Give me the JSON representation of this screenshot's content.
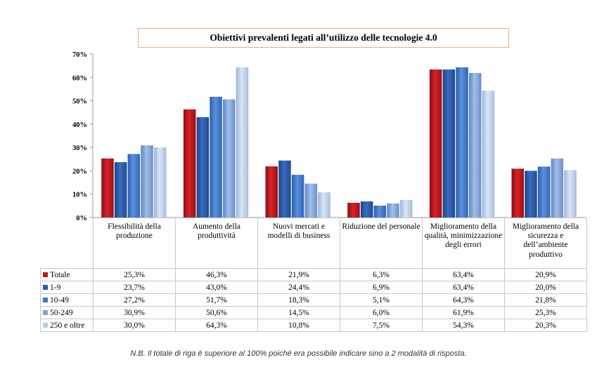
{
  "chart_data": {
    "type": "bar",
    "title": "Obiettivi prevalenti legati all’utilizzo delle tecnologie 4.0",
    "categories": [
      "Flessibilità della produzione",
      "Aumento della produttività",
      "Nuovi mercati e modelli di business",
      "Riduzione del personale",
      "Miglioramento della qualità, minimizzazione degli errori",
      "Miglioramento della sicurezza e dell’ambiente produttivo"
    ],
    "series": [
      {
        "name": "Totale",
        "color": "#c0141c",
        "values": [
          25.3,
          46.3,
          21.9,
          6.3,
          63.4,
          20.9
        ],
        "labels": [
          "25,3%",
          "46,3%",
          "21,9%",
          "6,3%",
          "63,4%",
          "20,9%"
        ]
      },
      {
        "name": "1-9",
        "color": "#2a5ba8",
        "values": [
          23.7,
          43.0,
          24.4,
          6.9,
          63.4,
          20.0
        ],
        "labels": [
          "23,7%",
          "43,0%",
          "24,4%",
          "6,9%",
          "63,4%",
          "20,0%"
        ]
      },
      {
        "name": "10-49",
        "color": "#3d78c6",
        "values": [
          27.2,
          51.7,
          18.3,
          5.1,
          64.3,
          21.8
        ],
        "labels": [
          "27,2%",
          "51,7%",
          "18,3%",
          "5,1%",
          "64,3%",
          "21,8%"
        ]
      },
      {
        "name": "50-249",
        "color": "#7fa3d8",
        "values": [
          30.9,
          50.6,
          14.5,
          6.0,
          61.9,
          25.3
        ],
        "labels": [
          "30,9%",
          "50,6%",
          "14,5%",
          "6,0%",
          "61,9%",
          "25,3%"
        ]
      },
      {
        "name": "250 e oltre",
        "color": "#b9cdea",
        "values": [
          30.0,
          64.3,
          10.8,
          7.5,
          54.3,
          20.3
        ],
        "labels": [
          "30,0%",
          "64,3%",
          "10,8%",
          "7,5%",
          "54,3%",
          "20,3%"
        ]
      }
    ],
    "ylim": [
      0,
      70
    ],
    "yticks": [
      "0%",
      "10%",
      "20%",
      "30%",
      "40%",
      "50%",
      "60%",
      "70%"
    ],
    "grid": false,
    "legend": "table-below"
  },
  "footnote": "N.B. Il totale di riga è superiore al 100% poiché era possibile indicare sino a 2 modalità di risposta."
}
